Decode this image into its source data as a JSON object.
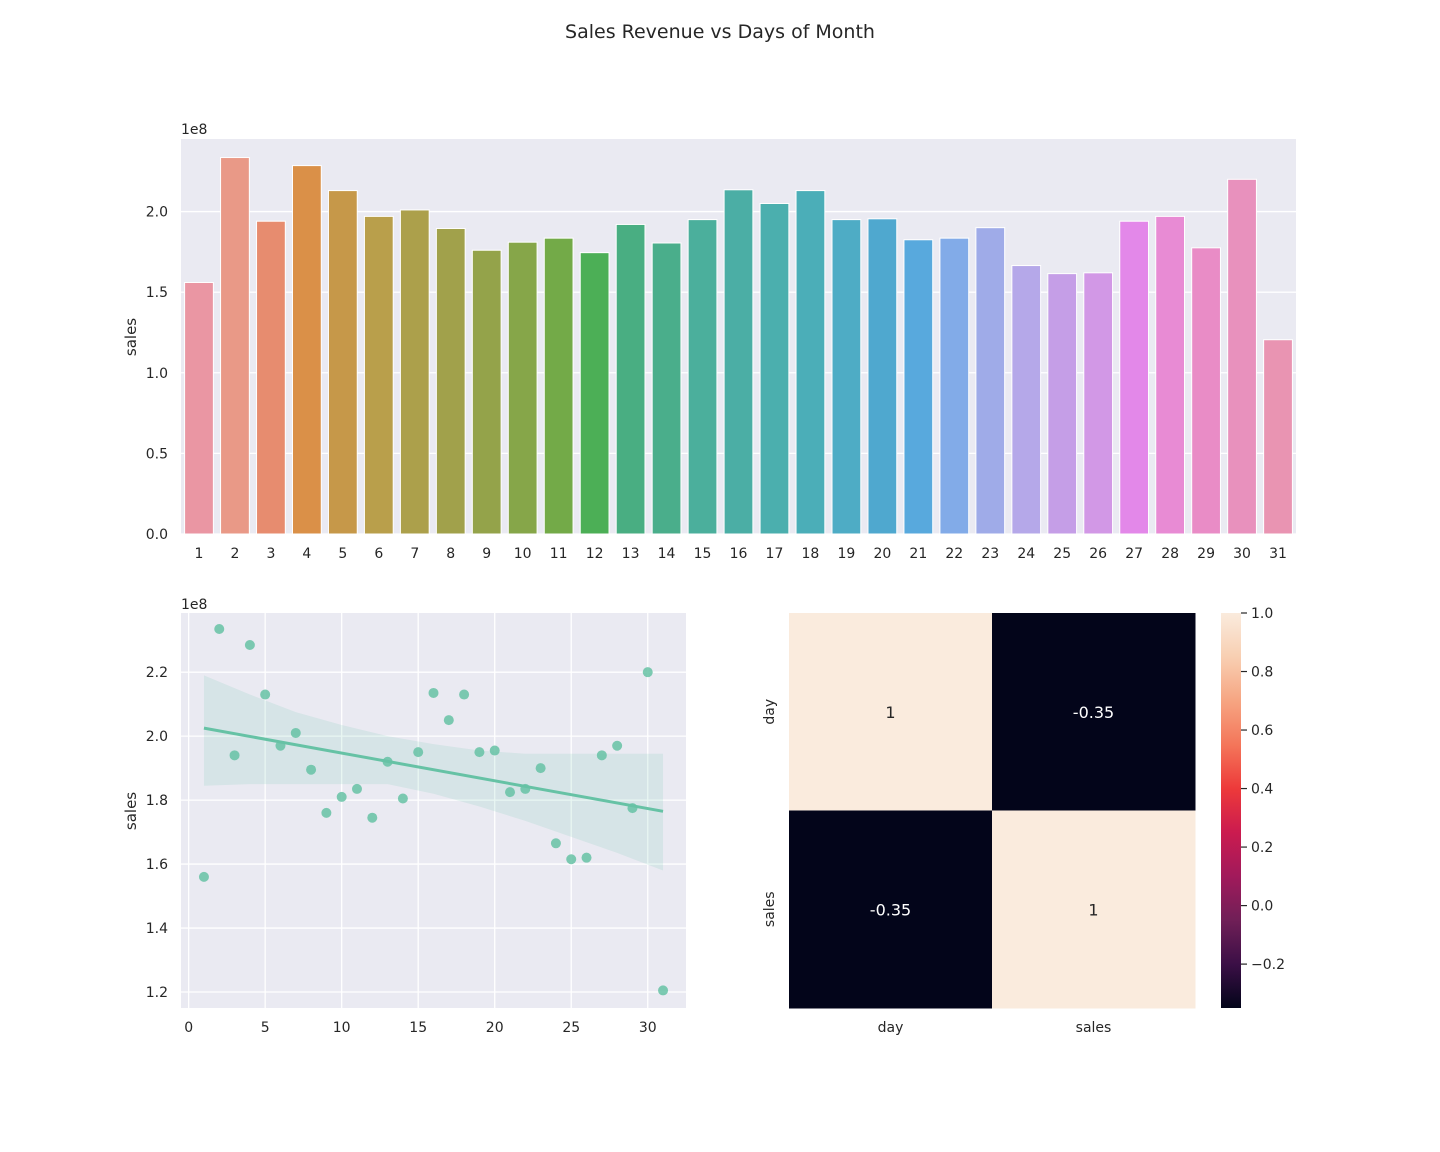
{
  "figure": {
    "title": "Sales Revenue vs Days of Month"
  },
  "chart_data": [
    {
      "type": "bar",
      "ylabel": "sales",
      "xlabel": "",
      "offset_label": "1e8",
      "ylim": [
        0,
        2.45
      ],
      "yticks": [
        "0.0",
        "0.5",
        "1.0",
        "1.5",
        "2.0"
      ],
      "grid": true,
      "categories": [
        "1",
        "2",
        "3",
        "4",
        "5",
        "6",
        "7",
        "8",
        "9",
        "10",
        "11",
        "12",
        "13",
        "14",
        "15",
        "16",
        "17",
        "18",
        "19",
        "20",
        "21",
        "22",
        "23",
        "24",
        "25",
        "26",
        "27",
        "28",
        "29",
        "30",
        "31"
      ],
      "values": [
        1.56,
        2.335,
        1.94,
        2.285,
        2.13,
        1.97,
        2.01,
        1.895,
        1.76,
        1.81,
        1.835,
        1.745,
        1.92,
        1.805,
        1.95,
        2.135,
        2.05,
        2.13,
        1.95,
        1.955,
        1.825,
        1.835,
        1.9,
        1.665,
        1.615,
        1.62,
        1.94,
        1.97,
        1.775,
        2.2,
        1.205
      ],
      "colors": [
        "#ea96a3",
        "#e99987",
        "#e78c6f",
        "#da9048",
        "#c69849",
        "#b99f4b",
        "#aca04b",
        "#a1a14b",
        "#94a34a",
        "#86a649",
        "#73aa48",
        "#4caf56",
        "#49ae82",
        "#4aae8b",
        "#4baf9c",
        "#4baea5",
        "#4bafae",
        "#4baeb8",
        "#4eacc5",
        "#4fa8cf",
        "#58a9dd",
        "#82abe8",
        "#9fabe8",
        "#b5a8e9",
        "#c59ee7",
        "#d298e6",
        "#e388e9",
        "#e88bd4",
        "#e98cc6",
        "#e891bd",
        "#e994b2"
      ]
    },
    {
      "type": "scatter",
      "ylabel": "sales",
      "xlabel": "",
      "offset_label": "1e8",
      "xlim": [
        -0.5,
        32.5
      ],
      "ylim": [
        1.15,
        2.385
      ],
      "xticks": [
        "0",
        "5",
        "10",
        "15",
        "20",
        "25",
        "30"
      ],
      "yticks": [
        "1.2",
        "1.4",
        "1.6",
        "1.8",
        "2.0",
        "2.2"
      ],
      "grid": true,
      "color": "#66c2a5",
      "x": [
        1,
        2,
        3,
        4,
        5,
        6,
        7,
        8,
        9,
        10,
        11,
        12,
        13,
        14,
        15,
        16,
        17,
        18,
        19,
        20,
        21,
        22,
        23,
        24,
        25,
        26,
        27,
        28,
        29,
        30,
        31
      ],
      "y": [
        1.56,
        2.335,
        1.94,
        2.285,
        2.13,
        1.97,
        2.01,
        1.895,
        1.76,
        1.81,
        1.835,
        1.745,
        1.92,
        1.805,
        1.95,
        2.135,
        2.05,
        2.13,
        1.95,
        1.955,
        1.825,
        1.835,
        1.9,
        1.665,
        1.615,
        1.62,
        1.94,
        1.97,
        1.775,
        2.2,
        1.205
      ],
      "regression": {
        "x": [
          1,
          31
        ],
        "y": [
          2.025,
          1.765
        ]
      },
      "ci_band": {
        "x": [
          1,
          4,
          7,
          10,
          13,
          16,
          19,
          22,
          25,
          28,
          31
        ],
        "upper": [
          2.19,
          2.13,
          2.075,
          2.035,
          2.0,
          1.975,
          1.955,
          1.945,
          1.945,
          1.945,
          1.945
        ],
        "lower": [
          1.845,
          1.85,
          1.85,
          1.85,
          1.85,
          1.82,
          1.78,
          1.735,
          1.685,
          1.635,
          1.58
        ]
      }
    },
    {
      "type": "heatmap",
      "row_labels": [
        "day",
        "sales"
      ],
      "col_labels": [
        "day",
        "sales"
      ],
      "values": [
        [
          1,
          -0.35
        ],
        [
          -0.35,
          1
        ]
      ],
      "annotations": [
        [
          "1",
          "-0.35"
        ],
        [
          "-0.35",
          "1"
        ]
      ],
      "colorbar": {
        "range": [
          -0.35,
          1.0
        ],
        "ticks": [
          {
            "value": 1.0,
            "label": "1.0"
          },
          {
            "value": 0.8,
            "label": "0.8"
          },
          {
            "value": 0.6,
            "label": "0.6"
          },
          {
            "value": 0.4,
            "label": "0.4"
          },
          {
            "value": 0.2,
            "label": "0.2"
          },
          {
            "value": 0.0,
            "label": "0.0"
          },
          {
            "value": -0.2,
            "label": "−0.2"
          }
        ],
        "colors": [
          "#03051a",
          "#3b0f46",
          "#701f57",
          "#a11a5b",
          "#cb1b4f",
          "#ed3a3a",
          "#f4765a",
          "#f6a582",
          "#f8cfb2",
          "#faebdd"
        ]
      }
    }
  ]
}
